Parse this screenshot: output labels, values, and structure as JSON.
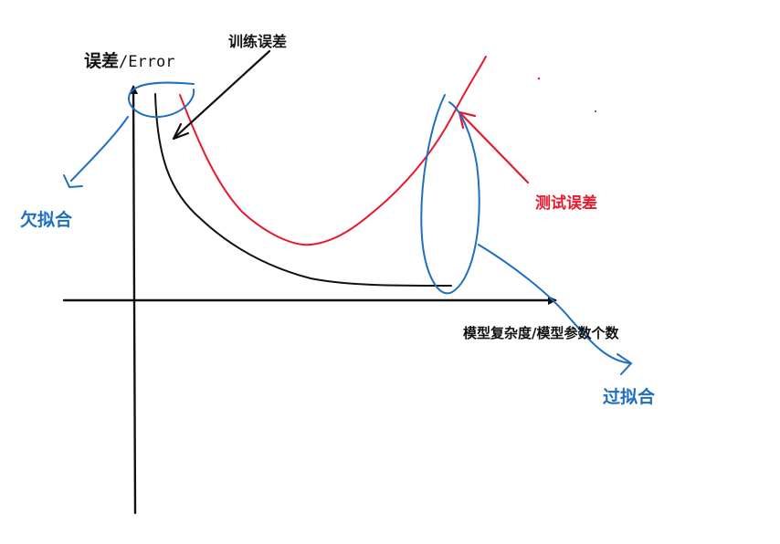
{
  "y_axis_label": {
    "bold": "误差",
    "plain": "/Error"
  },
  "x_axis_label": "模型复杂度/模型参数个数",
  "training_error_label": "训练误差",
  "test_error_label": "测试误差",
  "underfitting_label": "欠拟合",
  "overfitting_label": "过拟合",
  "colors": {
    "axis": "#111111",
    "training_curve": "#111111",
    "test_curve": "#e8192c",
    "annotation_blue": "#1e6fc0",
    "test_label": "#e8192c"
  }
}
